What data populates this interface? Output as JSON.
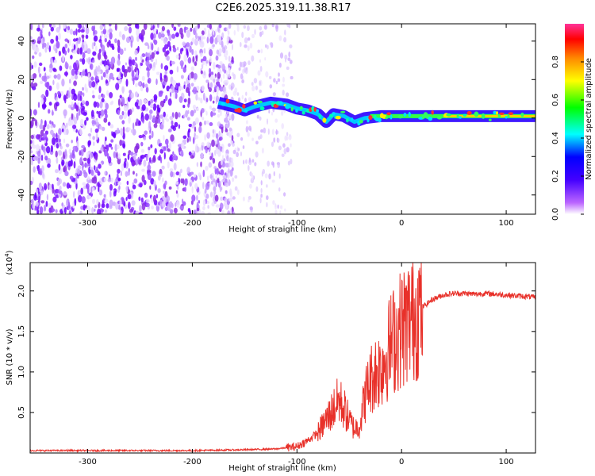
{
  "title": "C2E6.2025.319.11.38.R17",
  "colors": {
    "snr_line": "#e8312a",
    "frame": "#000000",
    "background": "#ffffff"
  },
  "chart_data": [
    {
      "type": "heatmap",
      "name": "spectrogram",
      "xlabel": "Height of straight line (km)",
      "ylabel": "Frequency (Hz)",
      "xlim": [
        -355,
        128
      ],
      "ylim": [
        -50,
        49
      ],
      "xticks": [
        -300,
        -200,
        -100,
        0,
        100
      ],
      "yticks": [
        -40,
        -20,
        0,
        20,
        40
      ],
      "xtick_labels": [
        "-300",
        "-200",
        "-100",
        "0",
        "100"
      ],
      "ytick_labels": [
        "-40",
        "-20",
        "0",
        "20",
        "40"
      ],
      "colorbar": {
        "label": "Normalized spectral amplitude",
        "range": [
          0.0,
          1.0
        ],
        "ticks": [
          0.0,
          0.2,
          0.4,
          0.6,
          0.8
        ],
        "tick_labels": [
          "0.0",
          "0.2",
          "0.4",
          "0.6",
          "0.8"
        ],
        "colormap": [
          "#ffffff",
          "#8800ff",
          "#0000ff",
          "#00ffff",
          "#00ff00",
          "#ffff00",
          "#ff8800",
          "#ff0000",
          "#ff33aa"
        ]
      },
      "signal_track": [
        {
          "x": -175,
          "y": 8
        },
        {
          "x": -160,
          "y": 6
        },
        {
          "x": -150,
          "y": 4
        },
        {
          "x": -140,
          "y": 6
        },
        {
          "x": -125,
          "y": 8
        },
        {
          "x": -110,
          "y": 7
        },
        {
          "x": -100,
          "y": 5
        },
        {
          "x": -90,
          "y": 4
        },
        {
          "x": -80,
          "y": 2
        },
        {
          "x": -72,
          "y": -2
        },
        {
          "x": -65,
          "y": 2
        },
        {
          "x": -55,
          "y": 1
        },
        {
          "x": -45,
          "y": -2
        },
        {
          "x": -35,
          "y": 0
        },
        {
          "x": -20,
          "y": 1
        },
        {
          "x": 0,
          "y": 1
        },
        {
          "x": 40,
          "y": 1
        },
        {
          "x": 80,
          "y": 1
        },
        {
          "x": 128,
          "y": 1
        }
      ],
      "noise_extent": {
        "dense_until_x": -180,
        "sparse_until_x": -105
      }
    },
    {
      "type": "line",
      "name": "snr",
      "xlabel": "Height of straight line (km)",
      "ylabel": "SNR (10 * v/v)",
      "scale_label": "(x10",
      "scale_exponent": "4",
      "scale_close": ")",
      "xlim": [
        -355,
        128
      ],
      "ylim": [
        0,
        2.35
      ],
      "xticks": [
        -300,
        -200,
        -100,
        0,
        100
      ],
      "yticks": [
        0.5,
        1.0,
        1.5,
        2.0
      ],
      "xtick_labels": [
        "-300",
        "-200",
        "-100",
        "0",
        "100"
      ],
      "ytick_labels": [
        "0.5",
        "1.0",
        "1.5",
        "2.0"
      ],
      "series": [
        {
          "name": "SNR",
          "x": [
            -355,
            -300,
            -250,
            -200,
            -150,
            -120,
            -100,
            -90,
            -80,
            -70,
            -65,
            -60,
            -55,
            -50,
            -45,
            -40,
            -35,
            -30,
            -25,
            -20,
            -15,
            -10,
            -5,
            0,
            5,
            10,
            15,
            20,
            25,
            30,
            40,
            50,
            60,
            70,
            80,
            90,
            100,
            110,
            120,
            128
          ],
          "y": [
            0.03,
            0.03,
            0.03,
            0.03,
            0.04,
            0.05,
            0.08,
            0.15,
            0.25,
            0.45,
            0.55,
            0.65,
            0.55,
            0.4,
            0.3,
            0.35,
            0.7,
            0.9,
            1.0,
            1.05,
            1.2,
            1.35,
            1.45,
            1.55,
            1.6,
            1.7,
            1.75,
            1.8,
            1.85,
            1.9,
            1.95,
            1.97,
            1.97,
            1.96,
            1.97,
            1.96,
            1.95,
            1.94,
            1.93,
            1.92
          ]
        }
      ]
    }
  ]
}
